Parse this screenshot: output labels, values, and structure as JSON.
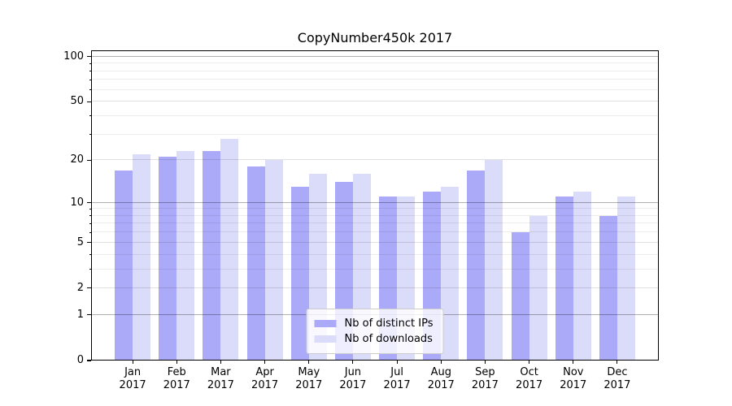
{
  "title": "CopyNumber450k 2017",
  "chart_data": {
    "type": "bar",
    "title": "CopyNumber450k 2017",
    "categories": [
      "Jan 2017",
      "Feb 2017",
      "Mar 2017",
      "Apr 2017",
      "May 2017",
      "Jun 2017",
      "Jul 2017",
      "Aug 2017",
      "Sep 2017",
      "Oct 2017",
      "Nov 2017",
      "Dec 2017"
    ],
    "series": [
      {
        "name": "Nb of distinct IPs",
        "color": "#aaaaf8",
        "values": [
          17,
          21,
          23,
          18,
          13,
          14,
          11,
          12,
          17,
          6,
          11,
          8
        ]
      },
      {
        "name": "Nb of downloads",
        "color": "#dbdbfa",
        "values": [
          22,
          23,
          28,
          20,
          16,
          16,
          11,
          13,
          20,
          8,
          12,
          11
        ]
      }
    ],
    "xlabel": "",
    "ylabel": "",
    "yscale": "log1p",
    "ylim": [
      0,
      110
    ],
    "yticks": [
      0,
      1,
      2,
      5,
      10,
      20,
      50,
      100
    ],
    "yticks_minor": [
      3,
      4,
      6,
      7,
      8,
      9,
      30,
      40,
      60,
      70,
      80,
      90
    ],
    "grid": true,
    "legend_position": "lower center"
  },
  "colors": {
    "bar_distinct_ips": "#aaaaf8",
    "bar_downloads": "#dbdbfa",
    "grid_decade": "#b0b0b0",
    "grid_major": "#e0e0e0",
    "grid_minor": "#ececec",
    "axis": "#000000",
    "background": "#ffffff",
    "legend_border": "#cccccc"
  }
}
